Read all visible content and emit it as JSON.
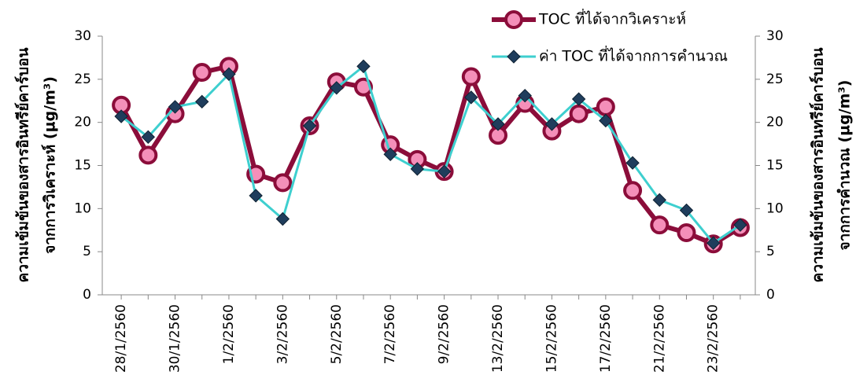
{
  "chart_data": {
    "type": "line",
    "categories": [
      "28/1/2560",
      null,
      "30/1/2560",
      null,
      "1/2/2560",
      null,
      "3/2/2560",
      null,
      "5/2/2560",
      null,
      "7/2/2560",
      null,
      "9/2/2560",
      null,
      "13/2/2560",
      null,
      "15/2/2560",
      null,
      "17/2/2560",
      null,
      "21/2/2560",
      null,
      "23/2/2560",
      null
    ],
    "series": [
      {
        "name": "TOC ที่ได้จากวิเคราะห์",
        "color": "#8b0d3a",
        "marker_color": "#f48fb9",
        "values": [
          22,
          16.2,
          21,
          25.8,
          26.5,
          14,
          13,
          19.6,
          24.7,
          24.1,
          17.4,
          15.7,
          14.3,
          25.3,
          18.5,
          22.2,
          19,
          21,
          21.8,
          12.1,
          8.1,
          7.2,
          5.9,
          7.8
        ]
      },
      {
        "name": "ค่า TOC ที่ได้จากการคำนวณ",
        "color": "#3ecfcf",
        "marker_color": "#1f3d5c",
        "axis": "y2",
        "values": [
          20.7,
          18.3,
          21.8,
          22.4,
          25.6,
          11.5,
          8.8,
          19.6,
          24.0,
          26.5,
          16.3,
          14.6,
          14.3,
          22.9,
          19.8,
          23.1,
          19.8,
          22.7,
          20.2,
          15.3,
          11.0,
          9.8,
          6.0,
          8.1
        ]
      }
    ],
    "ylabel": [
      "ความเข้มข้นของสารอินทรีย์คาร์บอน",
      "จากการวิเคราะห์ (µg/m³)"
    ],
    "y2label": [
      "ความเข้มข้นของสารอินทรีย์คาร์บอน",
      "จากการคำนวณ (µg/m³)"
    ],
    "ylim": [
      0,
      30
    ],
    "yticks": [
      0,
      5,
      10,
      15,
      20,
      25,
      30
    ],
    "y2lim": [
      0,
      30
    ],
    "y2ticks": [
      0,
      5,
      10,
      15,
      20,
      25,
      30
    ],
    "grid": false,
    "legend": "top-right"
  }
}
